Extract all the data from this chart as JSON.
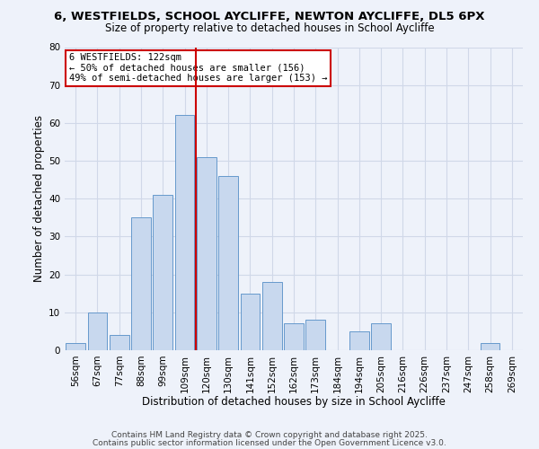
{
  "title_line1": "6, WESTFIELDS, SCHOOL AYCLIFFE, NEWTON AYCLIFFE, DL5 6PX",
  "title_line2": "Size of property relative to detached houses in School Aycliffe",
  "xlabel": "Distribution of detached houses by size in School Aycliffe",
  "ylabel": "Number of detached properties",
  "bar_labels": [
    "56sqm",
    "67sqm",
    "77sqm",
    "88sqm",
    "99sqm",
    "109sqm",
    "120sqm",
    "130sqm",
    "141sqm",
    "152sqm",
    "162sqm",
    "173sqm",
    "184sqm",
    "194sqm",
    "205sqm",
    "216sqm",
    "226sqm",
    "237sqm",
    "247sqm",
    "258sqm",
    "269sqm"
  ],
  "bar_values": [
    2,
    10,
    4,
    35,
    41,
    62,
    51,
    46,
    15,
    18,
    7,
    8,
    0,
    5,
    7,
    0,
    0,
    0,
    0,
    2,
    0
  ],
  "bar_color": "#c8d8ee",
  "bar_edge_color": "#6699cc",
  "vline_x": 5.5,
  "vline_color": "#cc0000",
  "annotation_title": "6 WESTFIELDS: 122sqm",
  "annotation_line1": "← 50% of detached houses are smaller (156)",
  "annotation_line2": "49% of semi-detached houses are larger (153) →",
  "annotation_box_color": "#ffffff",
  "annotation_box_edge": "#cc0000",
  "ylim": [
    0,
    80
  ],
  "yticks": [
    0,
    10,
    20,
    30,
    40,
    50,
    60,
    70,
    80
  ],
  "footer_line1": "Contains HM Land Registry data © Crown copyright and database right 2025.",
  "footer_line2": "Contains public sector information licensed under the Open Government Licence v3.0.",
  "bg_color": "#eef2fa",
  "grid_color": "#d0d8e8",
  "title_fontsize": 9.5,
  "subtitle_fontsize": 8.5,
  "xlabel_fontsize": 8.5,
  "ylabel_fontsize": 8.5,
  "tick_fontsize": 7.5,
  "footer_fontsize": 6.5
}
